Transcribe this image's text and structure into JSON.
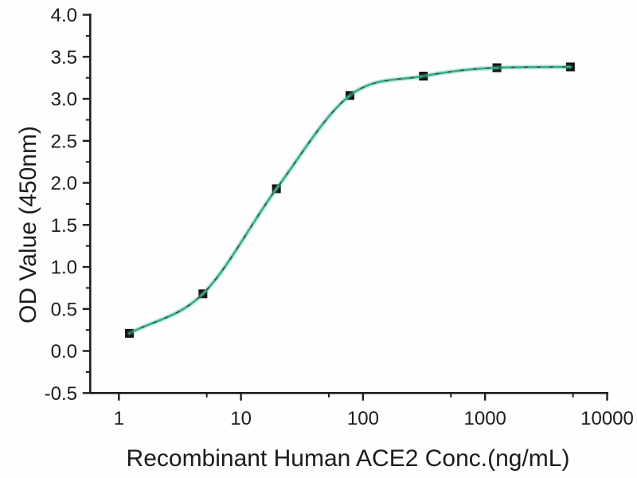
{
  "figure": {
    "title": "",
    "background": "#fefefe"
  },
  "chart_data": {
    "type": "scatter",
    "title": "",
    "xlabel": "Recombinant Human ACE2 Conc.(ng/mL)",
    "ylabel": "OD Value (450nm)",
    "x_scale": "log10",
    "xlim": [
      0.58,
      10000
    ],
    "ylim": [
      -0.5,
      4.0
    ],
    "x_ticks": [
      1,
      10,
      100,
      1000,
      10000
    ],
    "x_tick_labels": [
      "1",
      "10",
      "100",
      "1000",
      "10000"
    ],
    "y_ticks": [
      -0.5,
      0.0,
      0.5,
      1.0,
      1.5,
      2.0,
      2.5,
      3.0,
      3.5,
      4.0
    ],
    "y_tick_labels": [
      "-0.5",
      "0.0",
      "0.5",
      "1.0",
      "1.5",
      "2.0",
      "2.5",
      "3.0",
      "3.5",
      "4.0"
    ],
    "grid": false,
    "legend": "none",
    "series": [
      {
        "x": [
          1.22,
          4.88,
          19.53,
          78.13,
          312.5,
          1250,
          5000
        ],
        "y": [
          0.21,
          0.68,
          1.93,
          3.04,
          3.27,
          3.37,
          3.38
        ],
        "marker": "black-square",
        "line": "smooth-sigmoid-fit"
      }
    ],
    "colors": {
      "curve": "#2fb090",
      "curve_glow": "#35b494",
      "curve_dash_overlay": "#4e3a30",
      "marker": "#17120e",
      "axis": "#1e1e1e",
      "text": "#1c1c1c"
    }
  }
}
